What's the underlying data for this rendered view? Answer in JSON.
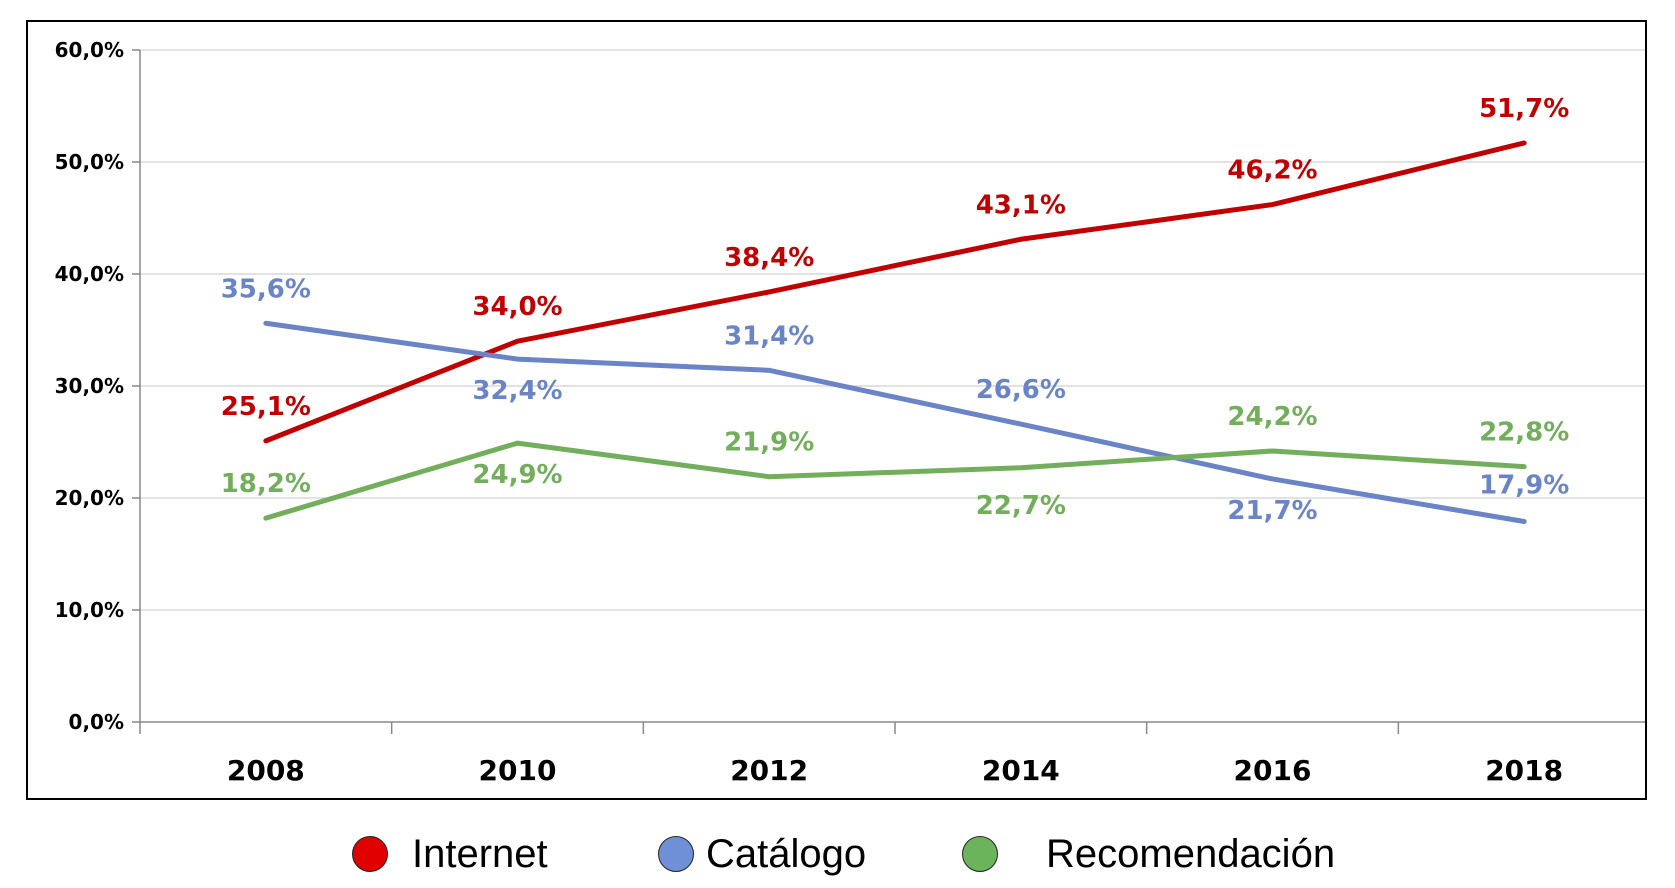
{
  "chart_data": {
    "type": "line",
    "x": [
      "2008",
      "2010",
      "2012",
      "2014",
      "2016",
      "2018"
    ],
    "ylim": [
      0,
      60
    ],
    "y_ticks": [
      "0,0%",
      "10,0%",
      "20,0%",
      "30,0%",
      "40,0%",
      "50,0%",
      "60,0%"
    ],
    "grid": true,
    "legend_position": "bottom",
    "series": [
      {
        "name": "Internet",
        "color": "#c00000",
        "values": [
          25.1,
          34.0,
          38.4,
          43.1,
          46.2,
          51.7
        ],
        "labels": [
          "25,1%",
          "34,0%",
          "38,4%",
          "43,1%",
          "46,2%",
          "51,7%"
        ]
      },
      {
        "name": "Catálogo",
        "color": "#6a84c6",
        "values": [
          35.6,
          32.4,
          31.4,
          26.6,
          21.7,
          17.9
        ],
        "labels": [
          "35,6%",
          "32,4%",
          "31,4%",
          "26,6%",
          "21,7%",
          "17,9%"
        ]
      },
      {
        "name": "Recomendación",
        "color": "#72ae5c",
        "values": [
          18.2,
          24.9,
          21.9,
          22.7,
          24.2,
          22.8
        ],
        "labels": [
          "18,2%",
          "24,9%",
          "21,9%",
          "22,7%",
          "24,2%",
          "22,8%"
        ]
      }
    ]
  },
  "legend": {
    "items": [
      {
        "label": "Internet",
        "color": "#e00000"
      },
      {
        "label": "Catálogo",
        "color": "#6f8fd6"
      },
      {
        "label": "Recomendación",
        "color": "#6cb45c"
      }
    ]
  }
}
